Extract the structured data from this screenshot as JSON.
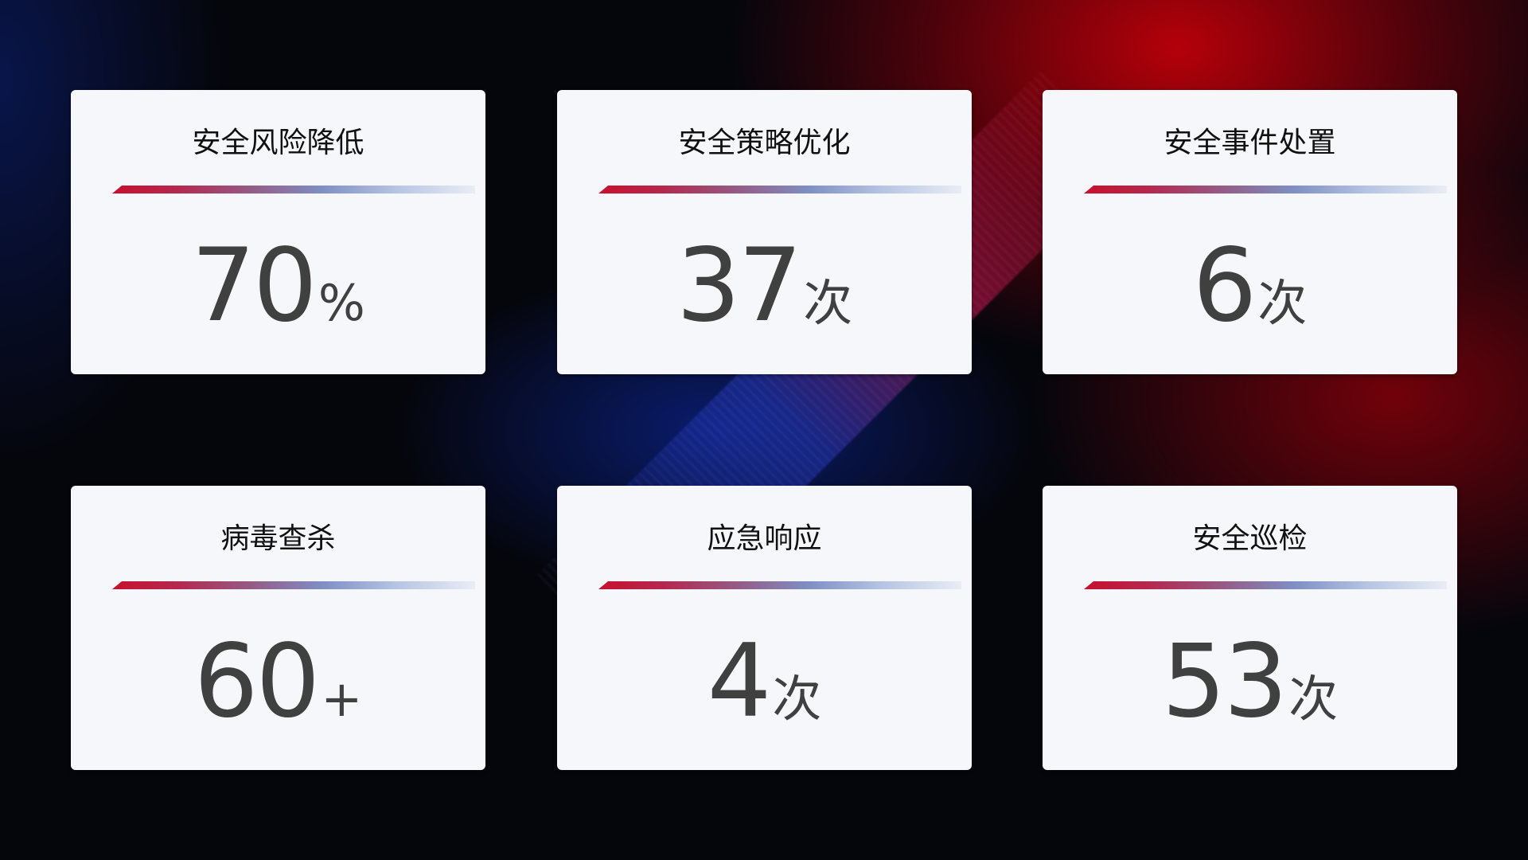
{
  "cards": [
    {
      "title": "安全风险降低",
      "value": "70",
      "unit": "%"
    },
    {
      "title": "安全策略优化",
      "value": "37",
      "unit": "次"
    },
    {
      "title": "安全事件处置",
      "value": "6",
      "unit": "次"
    },
    {
      "title": "病毒查杀",
      "value": "60",
      "unit": "+"
    },
    {
      "title": "应急响应",
      "value": "4",
      "unit": "次"
    },
    {
      "title": "安全巡检",
      "value": "53",
      "unit": "次"
    }
  ],
  "colors": {
    "bar_start": "#c8102e",
    "bar_mid": "#7f8fc4",
    "number": "#404040",
    "card_bg": "#f6f7fb"
  }
}
